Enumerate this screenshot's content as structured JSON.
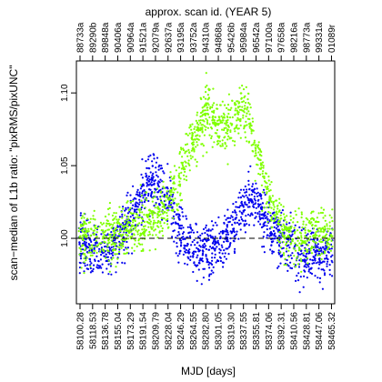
{
  "chart_data": {
    "type": "scatter",
    "title": "",
    "xlabel": "MJD [days]",
    "ylabel": "scan−median of L1b ratio: \"pixRMS/pixUNC\"",
    "top_axis_label": "approx. scan id. (YEAR 5)",
    "xlim": [
      58095,
      58470
    ],
    "ylim": [
      0.955,
      1.122
    ],
    "yticks": [
      1.0,
      1.05,
      1.1
    ],
    "ytick_labels": [
      "1.00",
      "1.05",
      "1.10"
    ],
    "xticks": [
      58100.28,
      58118.53,
      58136.78,
      58155.04,
      58173.29,
      58191.54,
      58209.79,
      58228.04,
      58246.29,
      58264.55,
      58282.8,
      58301.05,
      58319.3,
      58337.55,
      58355.81,
      58374.06,
      58392.31,
      58410.56,
      58428.81,
      58447.06,
      58465.32
    ],
    "xtick_labels": [
      "58100.28",
      "58118.53",
      "58136.78",
      "58155.04",
      "58173.29",
      "58191.54",
      "58209.79",
      "58228.04",
      "58246.29",
      "58264.55",
      "58282.80",
      "58301.05",
      "58319.30",
      "58337.55",
      "58355.81",
      "58374.06",
      "58392.31",
      "58410.56",
      "58428.81",
      "58447.06",
      "58465.32"
    ],
    "top_tick_labels": [
      "88733a",
      "89290b",
      "89848a",
      "90406a",
      "90964a",
      "91521a",
      "92079a",
      "92637a",
      "93195a",
      "93752a",
      "94310a",
      "94868a",
      "95426b",
      "95984a",
      "96542a",
      "97100a",
      "97658a",
      "98216a",
      "98773a",
      "99331a",
      "01089r"
    ],
    "reference_line": {
      "y": 1.0,
      "style": "dashed"
    },
    "grid": false,
    "legend": "none",
    "series": [
      {
        "color": "#0000ee",
        "trend": [
          {
            "x": 58098,
            "y": 1.0
          },
          {
            "x": 58120,
            "y": 0.994
          },
          {
            "x": 58140,
            "y": 0.993
          },
          {
            "x": 58160,
            "y": 1.004
          },
          {
            "x": 58180,
            "y": 1.022
          },
          {
            "x": 58195,
            "y": 1.036
          },
          {
            "x": 58205,
            "y": 1.042
          },
          {
            "x": 58215,
            "y": 1.04
          },
          {
            "x": 58230,
            "y": 1.026
          },
          {
            "x": 58245,
            "y": 1.008
          },
          {
            "x": 58258,
            "y": 0.996
          },
          {
            "x": 58270,
            "y": 0.993
          },
          {
            "x": 58290,
            "y": 0.995
          },
          {
            "x": 58310,
            "y": 1.002
          },
          {
            "x": 58325,
            "y": 1.012
          },
          {
            "x": 58340,
            "y": 1.026
          },
          {
            "x": 58350,
            "y": 1.03
          },
          {
            "x": 58362,
            "y": 1.02
          },
          {
            "x": 58375,
            "y": 1.01
          },
          {
            "x": 58395,
            "y": 1.0
          },
          {
            "x": 58420,
            "y": 0.992
          },
          {
            "x": 58450,
            "y": 0.99
          },
          {
            "x": 58468,
            "y": 0.993
          }
        ]
      },
      {
        "color": "#7fff00",
        "trend": [
          {
            "x": 58098,
            "y": 1.004
          },
          {
            "x": 58120,
            "y": 1.004
          },
          {
            "x": 58140,
            "y": 1.003
          },
          {
            "x": 58160,
            "y": 1.004
          },
          {
            "x": 58180,
            "y": 1.01
          },
          {
            "x": 58200,
            "y": 1.016
          },
          {
            "x": 58215,
            "y": 1.02
          },
          {
            "x": 58230,
            "y": 1.028
          },
          {
            "x": 58245,
            "y": 1.045
          },
          {
            "x": 58262,
            "y": 1.066
          },
          {
            "x": 58275,
            "y": 1.08
          },
          {
            "x": 58287,
            "y": 1.092
          },
          {
            "x": 58300,
            "y": 1.08
          },
          {
            "x": 58312,
            "y": 1.078
          },
          {
            "x": 58325,
            "y": 1.086
          },
          {
            "x": 58337,
            "y": 1.094
          },
          {
            "x": 58345,
            "y": 1.088
          },
          {
            "x": 58355,
            "y": 1.062
          },
          {
            "x": 58365,
            "y": 1.046
          },
          {
            "x": 58378,
            "y": 1.026
          },
          {
            "x": 58395,
            "y": 1.004
          },
          {
            "x": 58420,
            "y": 1.004
          },
          {
            "x": 58450,
            "y": 1.006
          },
          {
            "x": 58468,
            "y": 1.006
          }
        ]
      }
    ]
  }
}
